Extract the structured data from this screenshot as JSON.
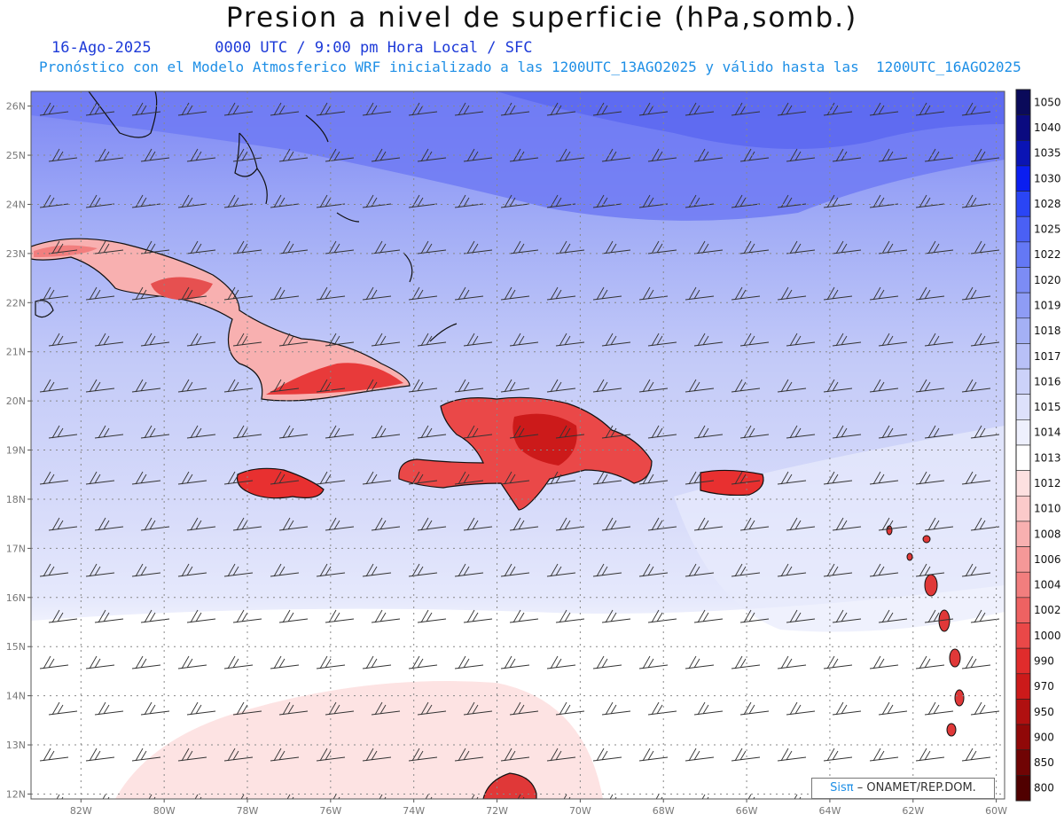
{
  "title": "Presion a nivel de superficie (hPa,somb.)",
  "date_line": "16-Ago-2025",
  "time_line": "0000 UTC / 9:00 pm Hora Local / SFC",
  "forecast_line": "Pronóstico con el Modelo Atmosferico WRF inicializado a las 1200UTC_13AGO2025 y válido hasta las  1200UTC_16AGO2025",
  "lat_labels": [
    "26N",
    "25N",
    "24N",
    "23N",
    "22N",
    "21N",
    "20N",
    "19N",
    "18N",
    "17N",
    "16N",
    "15N",
    "14N",
    "13N",
    "12N"
  ],
  "lon_labels": [
    "82W",
    "80W",
    "78W",
    "76W",
    "74W",
    "72W",
    "70W",
    "68W",
    "66W",
    "64W",
    "62W",
    "60W"
  ],
  "colorbar": {
    "labels": [
      "1050",
      "1040",
      "1035",
      "1030",
      "1028",
      "1025",
      "1022",
      "1020",
      "1019",
      "1018",
      "1017",
      "1016",
      "1015",
      "1014",
      "1013",
      "1012",
      "1010",
      "1008",
      "1006",
      "1004",
      "1002",
      "1000",
      "990",
      "970",
      "950",
      "900",
      "850",
      "800"
    ],
    "colors": [
      "#0a0a5a",
      "#0a0a80",
      "#0a14b4",
      "#0a1ef0",
      "#2a45f5",
      "#4a60f5",
      "#6478f5",
      "#7c8cf5",
      "#8e9cf5",
      "#a4b0f5",
      "#b8c0f7",
      "#ccd2f9",
      "#dde1fb",
      "#eef0fd",
      "#ffffff",
      "#fde0e0",
      "#fbcaca",
      "#f8b0b0",
      "#f59898",
      "#f27e7e",
      "#ee6262",
      "#ea4848",
      "#e02c2c",
      "#cc1a1a",
      "#b01010",
      "#900808",
      "#700404",
      "#500000"
    ]
  },
  "credit": {
    "brand": "Sisπ",
    "text": "– ONAMET/REP.DOM."
  },
  "map_features": {
    "coastline-icon": "coastline",
    "wind-barb-icon": "wind-barb"
  }
}
